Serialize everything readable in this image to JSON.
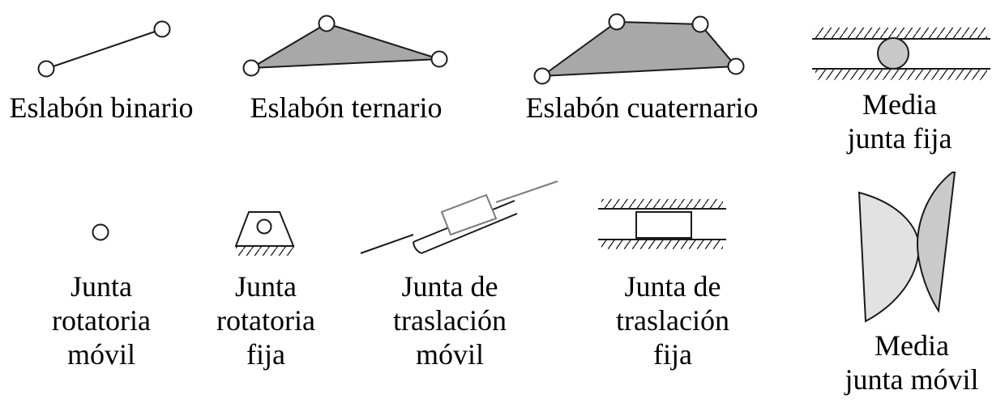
{
  "colors": {
    "stroke": "#1a1a1a",
    "link_fill": "#a8a8a8",
    "roller_fill": "#c8c8c8",
    "cam_fill_light": "#e2e2e2",
    "cam_fill_dark": "#cacaca",
    "slider_stroke": "#7a7a7a",
    "background": "#ffffff"
  },
  "symbols": [
    {
      "id": "binary-link",
      "icon": "binary-link-icon",
      "label": [
        "Eslabón binario"
      ]
    },
    {
      "id": "ternary-link",
      "icon": "ternary-link-icon",
      "label": [
        "Eslabón ternario"
      ]
    },
    {
      "id": "quaternary-link",
      "icon": "quaternary-link-icon",
      "label": [
        "Eslabón cuaternario"
      ]
    },
    {
      "id": "fixed-half-joint",
      "icon": "roller-between-ground-icon",
      "label": [
        "Media",
        "junta fija"
      ]
    },
    {
      "id": "moving-revolute-joint",
      "icon": "pin-circle-icon",
      "label": [
        "Junta",
        "rotatoria",
        "móvil"
      ]
    },
    {
      "id": "fixed-revolute-joint",
      "icon": "grounded-pin-icon",
      "label": [
        "Junta",
        "rotatoria",
        "fija"
      ]
    },
    {
      "id": "moving-prismatic-joint",
      "icon": "slider-in-guide-icon",
      "label": [
        "Junta de",
        "traslación",
        "móvil"
      ]
    },
    {
      "id": "fixed-prismatic-joint",
      "icon": "block-between-ground-icon",
      "label": [
        "Junta de",
        "traslación",
        "fija"
      ]
    },
    {
      "id": "moving-half-joint",
      "icon": "cam-contact-icon",
      "label": [
        "Media",
        "junta móvil"
      ]
    }
  ]
}
